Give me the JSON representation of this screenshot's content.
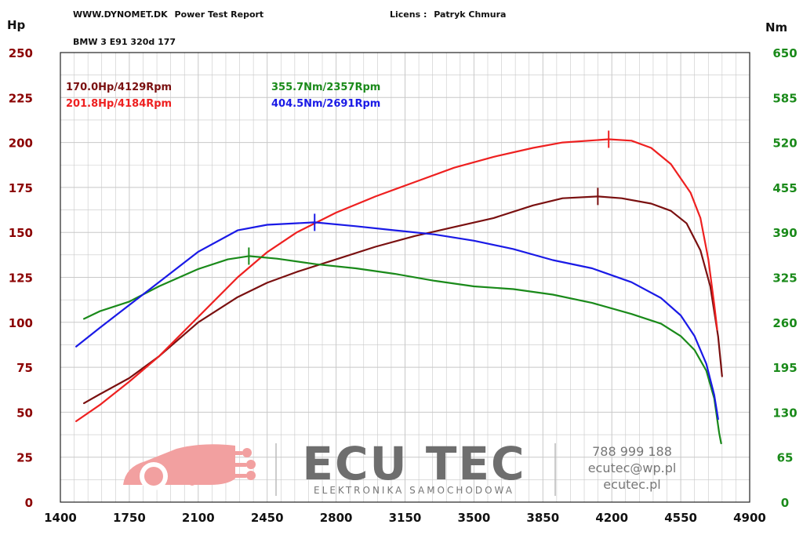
{
  "header": {
    "site": "WWW.DYNOMET.DK",
    "report": "Power Test Report",
    "licens_label": "Licens :",
    "licens_name": "Patryk Chmura",
    "car": "BMW 3 E91 320d 177"
  },
  "peaks": {
    "stock_hp": "170.0Hp/4129Rpm",
    "tuned_hp": "201.8Hp/4184Rpm",
    "stock_nm": "355.7Nm/2357Rpm",
    "tuned_nm": "404.5Nm/2691Rpm"
  },
  "watermark": {
    "brand": "ECU TEC",
    "tagline": "ELEKTRONIKA SAMOCHODOWA",
    "phone": "788 999 188",
    "email": "ecutec@wp.pl",
    "site": "ecutec.pl"
  },
  "colors": {
    "stock_hp": "#7a1010",
    "tuned_hp": "#ee2020",
    "stock_nm": "#1a8a1a",
    "tuned_nm": "#1a1ae6",
    "left_axis": "#8b0000",
    "right_axis": "#1a8a1a",
    "grid": "#c8c8c8"
  },
  "chart_data": {
    "type": "line",
    "xlabel": "",
    "ylabel_left": "Hp",
    "ylabel_right": "Nm",
    "xlim": [
      1400,
      4900
    ],
    "ylim_left": [
      0,
      250
    ],
    "ylim_right": [
      0,
      650
    ],
    "x_ticks": [
      1400,
      1750,
      2100,
      2450,
      2800,
      3150,
      3500,
      3850,
      4200,
      4550,
      4900
    ],
    "y_ticks_left": [
      0,
      25,
      50,
      75,
      100,
      125,
      150,
      175,
      200,
      225,
      250
    ],
    "y_ticks_right": [
      0,
      65,
      130,
      195,
      260,
      325,
      390,
      455,
      520,
      585,
      650
    ],
    "grid": true,
    "series": [
      {
        "key": "stock_hp",
        "axis": "left",
        "points": [
          [
            1520,
            55
          ],
          [
            1600,
            60
          ],
          [
            1750,
            69
          ],
          [
            1900,
            81
          ],
          [
            2100,
            100
          ],
          [
            2300,
            114
          ],
          [
            2450,
            122
          ],
          [
            2600,
            128
          ],
          [
            2800,
            135
          ],
          [
            3000,
            142
          ],
          [
            3200,
            148
          ],
          [
            3400,
            153
          ],
          [
            3600,
            158
          ],
          [
            3800,
            165
          ],
          [
            3950,
            169
          ],
          [
            4129,
            170
          ],
          [
            4250,
            169
          ],
          [
            4400,
            166
          ],
          [
            4500,
            162
          ],
          [
            4580,
            155
          ],
          [
            4650,
            140
          ],
          [
            4700,
            120
          ],
          [
            4740,
            92
          ],
          [
            4760,
            70
          ]
        ],
        "peak": [
          4129,
          170.0
        ]
      },
      {
        "key": "tuned_hp",
        "axis": "left",
        "points": [
          [
            1480,
            45
          ],
          [
            1600,
            54
          ],
          [
            1750,
            67
          ],
          [
            1900,
            81
          ],
          [
            2100,
            103
          ],
          [
            2300,
            125
          ],
          [
            2450,
            139
          ],
          [
            2600,
            150
          ],
          [
            2800,
            161
          ],
          [
            3000,
            170
          ],
          [
            3200,
            178
          ],
          [
            3400,
            186
          ],
          [
            3600,
            192
          ],
          [
            3800,
            197
          ],
          [
            3950,
            200
          ],
          [
            4184,
            201.8
          ],
          [
            4300,
            201
          ],
          [
            4400,
            197
          ],
          [
            4500,
            188
          ],
          [
            4600,
            172
          ],
          [
            4650,
            158
          ],
          [
            4690,
            135
          ],
          [
            4720,
            110
          ],
          [
            4735,
            96
          ]
        ],
        "peak": [
          4184,
          201.8
        ]
      },
      {
        "key": "stock_nm",
        "axis": "right",
        "points": [
          [
            1520,
            265
          ],
          [
            1600,
            276
          ],
          [
            1750,
            290
          ],
          [
            1900,
            312
          ],
          [
            2100,
            337
          ],
          [
            2250,
            351
          ],
          [
            2357,
            355.7
          ],
          [
            2500,
            352
          ],
          [
            2700,
            344
          ],
          [
            2900,
            338
          ],
          [
            3100,
            330
          ],
          [
            3300,
            320
          ],
          [
            3500,
            312
          ],
          [
            3700,
            308
          ],
          [
            3900,
            300
          ],
          [
            4100,
            288
          ],
          [
            4300,
            272
          ],
          [
            4450,
            258
          ],
          [
            4550,
            240
          ],
          [
            4620,
            220
          ],
          [
            4680,
            190
          ],
          [
            4720,
            150
          ],
          [
            4745,
            100
          ],
          [
            4755,
            85
          ]
        ],
        "peak": [
          2357,
          355.7
        ]
      },
      {
        "key": "tuned_nm",
        "axis": "right",
        "points": [
          [
            1480,
            225
          ],
          [
            1600,
            252
          ],
          [
            1750,
            285
          ],
          [
            1900,
            318
          ],
          [
            2100,
            362
          ],
          [
            2300,
            393
          ],
          [
            2450,
            401
          ],
          [
            2691,
            404.5
          ],
          [
            2900,
            399
          ],
          [
            3100,
            393
          ],
          [
            3300,
            387
          ],
          [
            3500,
            378
          ],
          [
            3700,
            366
          ],
          [
            3900,
            350
          ],
          [
            4100,
            338
          ],
          [
            4300,
            318
          ],
          [
            4450,
            295
          ],
          [
            4550,
            270
          ],
          [
            4620,
            240
          ],
          [
            4680,
            200
          ],
          [
            4720,
            155
          ],
          [
            4740,
            120
          ]
        ],
        "peak": [
          2691,
          404.5
        ]
      }
    ]
  }
}
